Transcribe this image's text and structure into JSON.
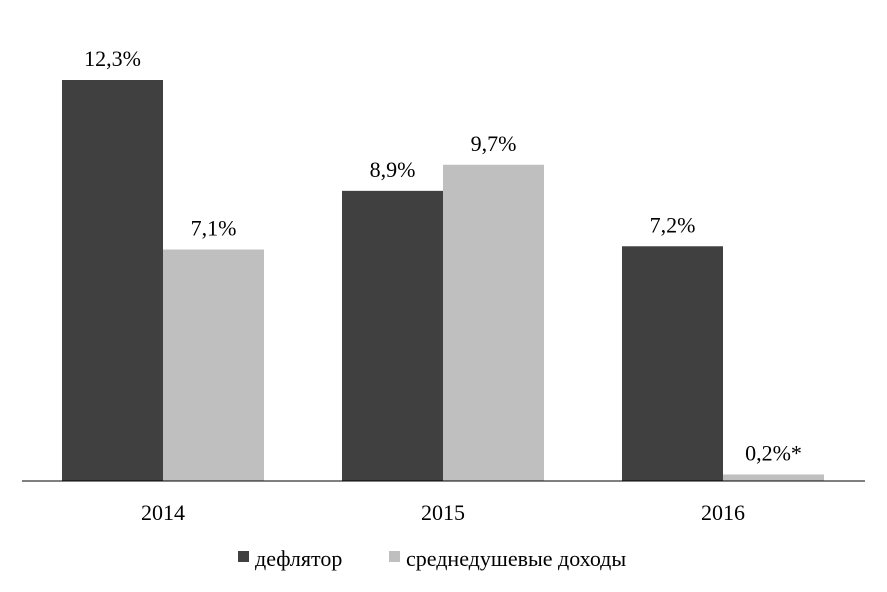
{
  "chart_data": {
    "type": "bar",
    "categories": [
      "2014",
      "2015",
      "2016"
    ],
    "series": [
      {
        "name": "дефлятор",
        "color": "#404040",
        "values": [
          12.3,
          8.9,
          7.2
        ],
        "labels": [
          "12,3%",
          "8,9%",
          "7,2%"
        ]
      },
      {
        "name": "среднедушевые доходы",
        "color": "#bfbfbf",
        "values": [
          7.1,
          9.7,
          0.2
        ],
        "labels": [
          "7,1%",
          "9,7%",
          "0,2%*"
        ]
      }
    ],
    "ylim": [
      0,
      12.3
    ],
    "grid": false,
    "legend_position": "bottom"
  }
}
